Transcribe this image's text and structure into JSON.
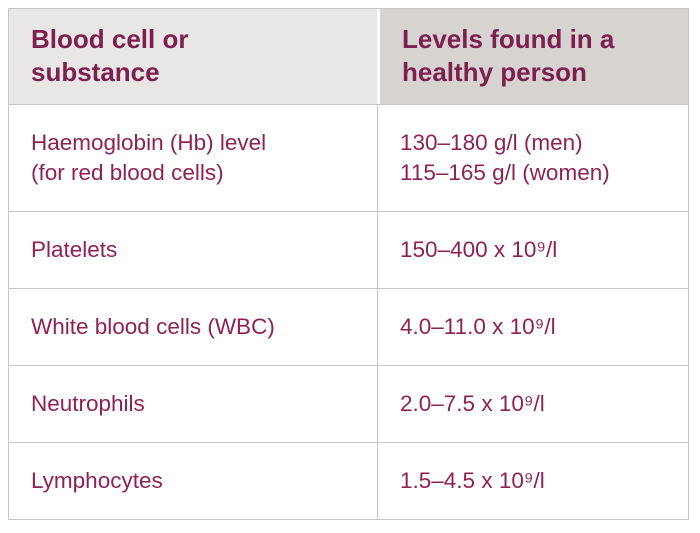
{
  "colors": {
    "text-header": "#7d2050",
    "text-body": "#8e2257",
    "hdr-bg1": "#e9e7e5",
    "hdr-bg2": "#d6d3d0",
    "border": "#c8c6c4",
    "header-divider": "#ffffff"
  },
  "table": {
    "header": {
      "col1": "Blood cell or substance",
      "col2": "Levels found in a healthy person"
    },
    "rows": [
      {
        "substance_lines": [
          "Haemoglobin (Hb) level",
          "(for red blood cells)"
        ],
        "value_lines": [
          "130–180 g/l (men)",
          "115–165 g/l (women)"
        ]
      },
      {
        "substance_lines": [
          "Platelets"
        ],
        "value_lines": [
          "150–400 x 10⁹/l"
        ]
      },
      {
        "substance_lines": [
          "White blood cells (WBC)"
        ],
        "value_lines": [
          "4.0–11.0 x 10⁹/l"
        ]
      },
      {
        "substance_lines": [
          "Neutrophils"
        ],
        "value_lines": [
          "2.0–7.5 x 10⁹/l"
        ]
      },
      {
        "substance_lines": [
          "Lymphocytes"
        ],
        "value_lines": [
          "1.5–4.5 x 10⁹/l"
        ]
      }
    ]
  }
}
